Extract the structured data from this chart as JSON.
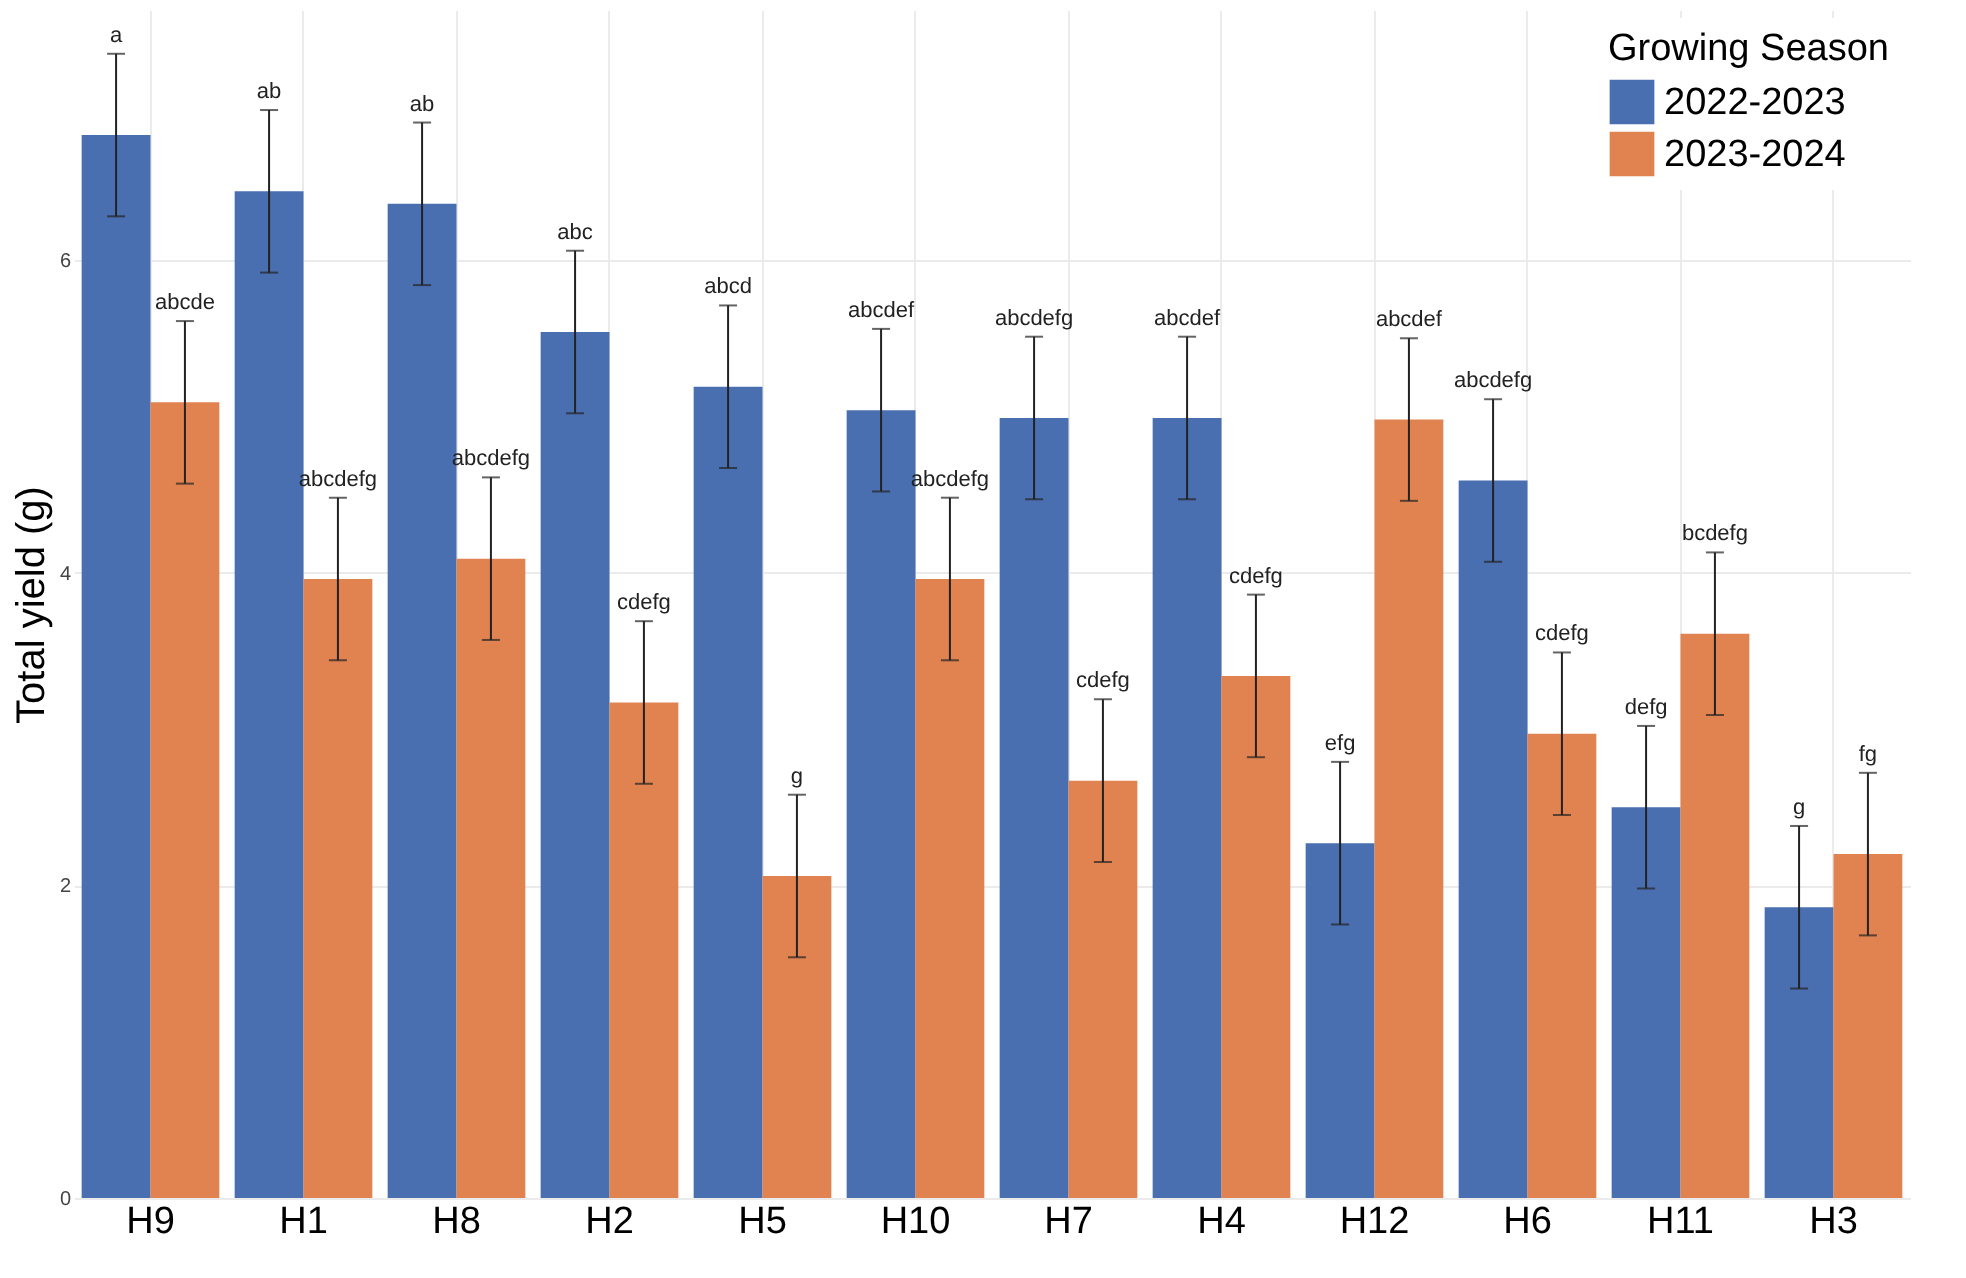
{
  "chart_data": {
    "type": "bar",
    "ylabel": "Total yield (g)",
    "legend_title": "Growing Season",
    "legend": "top right",
    "grid": true,
    "categories": [
      "H9",
      "H1",
      "H8",
      "H2",
      "H5",
      "H10",
      "H7",
      "H4",
      "H12",
      "H6",
      "H11",
      "H3"
    ],
    "ylim": [
      0,
      7.6
    ],
    "yticks": [
      0,
      2,
      4,
      6
    ],
    "series": [
      {
        "name": "2022-2023",
        "color": "#4a6fb0",
        "values": [
          6.8,
          6.44,
          6.36,
          5.54,
          5.19,
          5.04,
          4.99,
          4.99,
          2.27,
          4.59,
          2.5,
          1.86
        ],
        "errors": [
          0.52,
          0.52,
          0.52,
          0.52,
          0.52,
          0.52,
          0.52,
          0.52,
          0.52,
          0.52,
          0.52,
          0.52
        ]
      },
      {
        "name": "2023-2024",
        "color": "#e08350",
        "values": [
          5.09,
          3.96,
          4.09,
          3.17,
          2.06,
          3.96,
          2.67,
          3.34,
          4.98,
          2.97,
          3.61,
          2.2
        ],
        "errors": [
          0.52,
          0.52,
          0.52,
          0.52,
          0.52,
          0.52,
          0.52,
          0.52,
          0.52,
          0.52,
          0.52,
          0.52
        ]
      }
    ],
    "annotations": [
      "a",
      "abcde",
      "ab",
      "abcdefg",
      "ab",
      "abcdefg",
      "abc",
      "cdefg",
      "abcd",
      "g",
      "abcdef",
      "abcdefg",
      "abcdefg",
      "cdefg",
      "abcdef",
      "cdefg",
      "efg",
      "abcdef",
      "abcdefg",
      "cdefg",
      "defg",
      "bcdefg",
      "g",
      "fg"
    ]
  }
}
